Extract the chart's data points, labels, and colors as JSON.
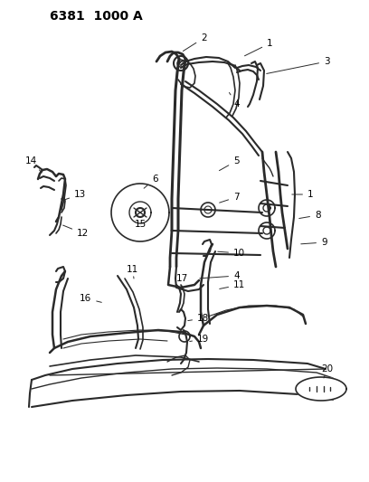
{
  "title": "6381 1000 A",
  "bg": "#ffffff",
  "lc": "#2a2a2a",
  "tc": "#000000",
  "title_fs": 10,
  "label_fs": 7.5,
  "figsize": [
    4.08,
    5.33
  ],
  "dpi": 100
}
